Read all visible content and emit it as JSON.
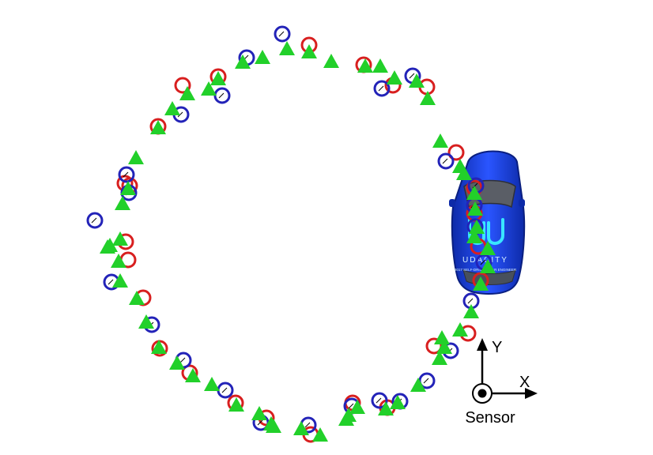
{
  "legend_text": {
    "sensor": "Sensor",
    "x_axis": "X",
    "y_axis": "Y"
  },
  "vehicle": {
    "brand": "UDACITY",
    "subtext": "2017 SELF-DRIVING CAR ENGINEER"
  },
  "colors": {
    "background": "#ffffff",
    "red_circle": "#d81f1f",
    "blue_circle": "#2323b8",
    "green_triangle": "#22d02a",
    "car_body": "#1b3fd6",
    "axis": "#000000"
  },
  "marker_counts": {
    "green_triangles": 56,
    "red_circles": 26,
    "blue_circles": 26
  }
}
